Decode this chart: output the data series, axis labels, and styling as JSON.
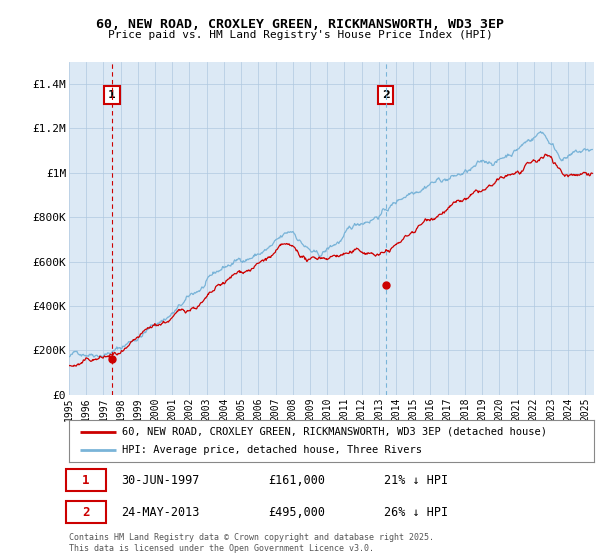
{
  "title": "60, NEW ROAD, CROXLEY GREEN, RICKMANSWORTH, WD3 3EP",
  "subtitle": "Price paid vs. HM Land Registry's House Price Index (HPI)",
  "ylabel_ticks": [
    "£0",
    "£200K",
    "£400K",
    "£600K",
    "£800K",
    "£1M",
    "£1.2M",
    "£1.4M"
  ],
  "ylim": [
    0,
    1500000
  ],
  "xlim_start": 1995,
  "xlim_end": 2025.5,
  "marker1_year": 1997.5,
  "marker1_value": 161000,
  "marker1_label": "1",
  "marker1_date": "30-JUN-1997",
  "marker1_price": "£161,000",
  "marker1_hpi": "21% ↓ HPI",
  "marker2_year": 2013.4,
  "marker2_value": 495000,
  "marker2_label": "2",
  "marker2_date": "24-MAY-2013",
  "marker2_price": "£495,000",
  "marker2_hpi": "26% ↓ HPI",
  "hpi_color": "#7ab4d8",
  "price_color": "#cc0000",
  "legend_label_price": "60, NEW ROAD, CROXLEY GREEN, RICKMANSWORTH, WD3 3EP (detached house)",
  "legend_label_hpi": "HPI: Average price, detached house, Three Rivers",
  "footer": "Contains HM Land Registry data © Crown copyright and database right 2025.\nThis data is licensed under the Open Government Licence v3.0.",
  "background_color": "#ffffff",
  "chart_bg_color": "#dce9f5",
  "grid_color": "#b0c8e0"
}
